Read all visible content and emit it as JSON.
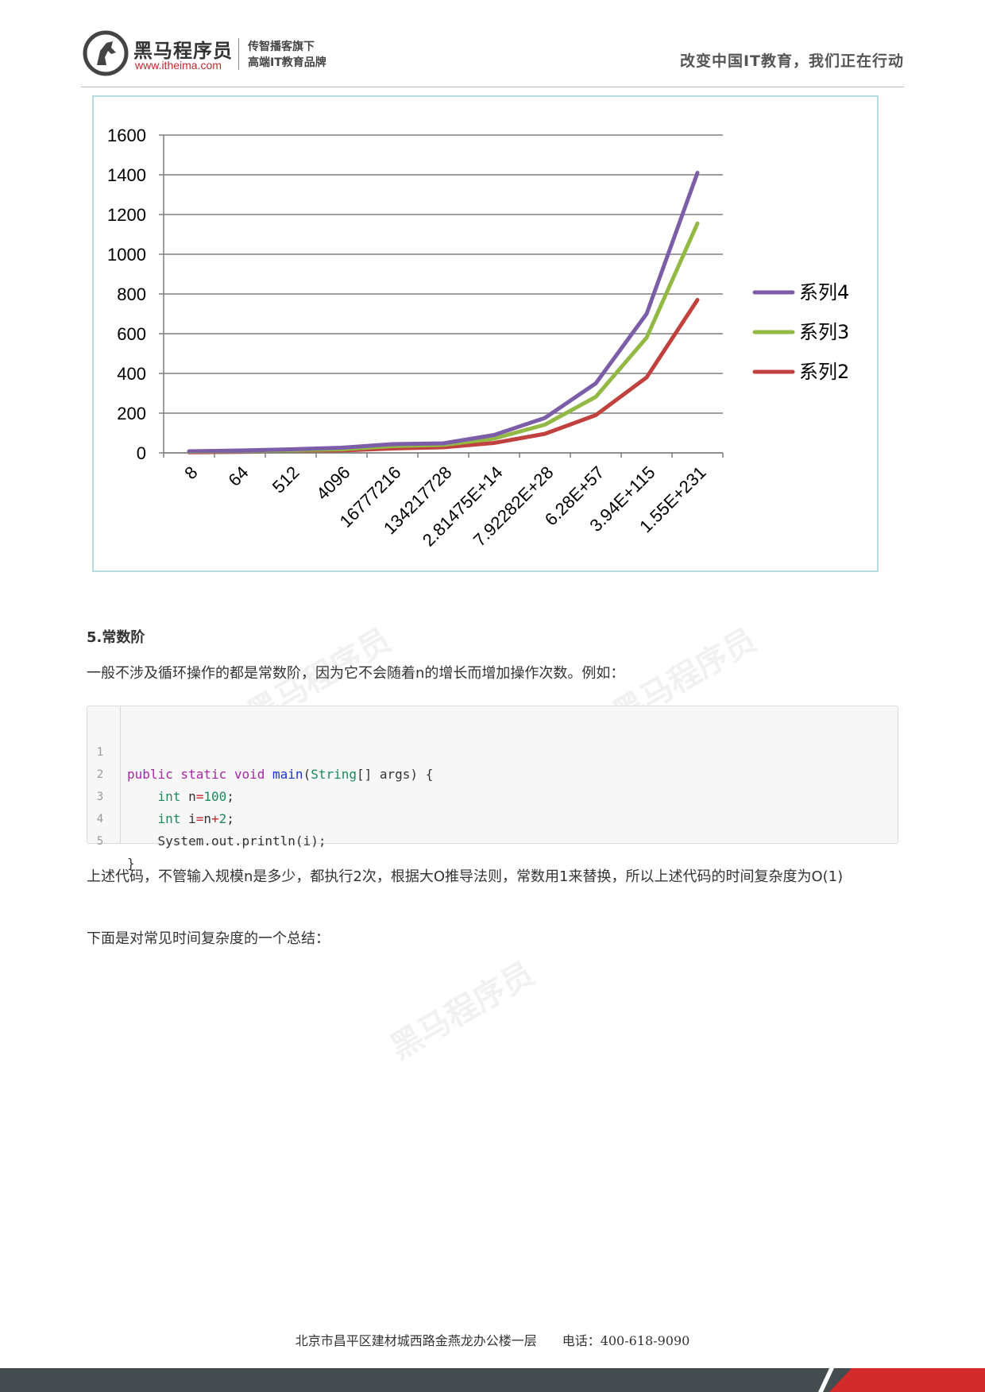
{
  "header": {
    "brand_name": "黑马程序员",
    "brand_url": "www.itheima.com",
    "brand_line1": "传智播客旗下",
    "brand_line2": "高端IT教育品牌",
    "slogan": "改变中国IT教育，我们正在行动"
  },
  "chart_data": {
    "type": "line",
    "categories": [
      "8",
      "64",
      "512",
      "4096",
      "16777216",
      "134217728",
      "2.81475E+14",
      "7.92282E+28",
      "6.28E+57",
      "3.94E+115",
      "1.55E+231"
    ],
    "series": [
      {
        "name": "系列4",
        "color": "#7b5ea7",
        "values": [
          8,
          12,
          18,
          26,
          44,
          48,
          90,
          176,
          350,
          700,
          1410
        ]
      },
      {
        "name": "系列3",
        "color": "#93b945",
        "values": [
          6,
          9,
          14,
          18,
          34,
          40,
          72,
          142,
          282,
          580,
          1155
        ]
      },
      {
        "name": "系列2",
        "color": "#c0413e",
        "values": [
          3,
          5,
          8,
          12,
          22,
          28,
          50,
          96,
          190,
          380,
          770
        ]
      }
    ],
    "yticks": [
      "0",
      "200",
      "400",
      "600",
      "800",
      "1000",
      "1200",
      "1400",
      "1600"
    ],
    "ylim": [
      0,
      1600
    ],
    "grid": true,
    "legend_position": "right"
  },
  "content": {
    "section_title": "5.常数阶",
    "para1": "一般不涉及循环操作的都是常数阶，因为它不会随着n的增长而增加操作次数。例如：",
    "code": {
      "line_numbers": [
        "1",
        "2",
        "3",
        "4",
        "5"
      ],
      "l1_kw": "public static void",
      "l1_fn": "main",
      "l1_p1": "(",
      "l1_ty": "String",
      "l1_rest": "[] args) {",
      "l2_ty": "int",
      "l2_a": " n",
      "l2_op": "=",
      "l2_num": "100",
      "l2_end": ";",
      "l3_ty": "int",
      "l3_a": " i",
      "l3_op1": "=",
      "l3_b": "n",
      "l3_op2": "+",
      "l3_num": "2",
      "l3_end": ";",
      "l4": "System.out.println(i);",
      "l5": "}"
    },
    "para2": "上述代码，不管输入规模n是多少，都执行2次，根据大O推导法则，常数用1来替换，所以上述代码的时间复杂度为O(1)",
    "para3": "下面是对常见时间复杂度的一个总结："
  },
  "footer": {
    "address": "北京市昌平区建材城西路金燕龙办公楼一层　　电话：400-618-9090"
  }
}
